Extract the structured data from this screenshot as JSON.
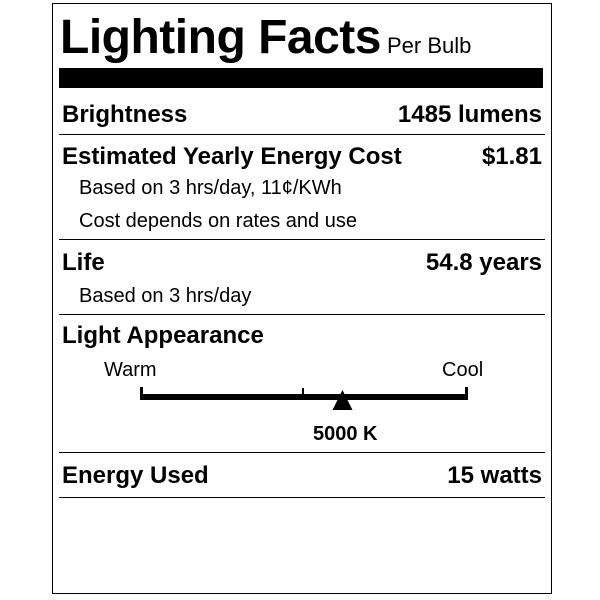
{
  "title": "Lighting Facts",
  "subtitle": "Per Bulb",
  "brightness": {
    "label": "Brightness",
    "value": "1485 lumens"
  },
  "energy_cost": {
    "label": "Estimated Yearly Energy Cost",
    "value": "$1.81",
    "note1": "Based on 3 hrs/day, 11¢/KWh",
    "note2": "Cost depends on rates and use"
  },
  "life": {
    "label": "Life",
    "value": "54.8 years",
    "note": "Based on 3 hrs/day"
  },
  "appearance": {
    "label": "Light Appearance",
    "warm": "Warm",
    "cool": "Cool",
    "value": "5000 K",
    "position_fraction": 0.62
  },
  "energy_used": {
    "label": "Energy Used",
    "value": "15 watts"
  }
}
